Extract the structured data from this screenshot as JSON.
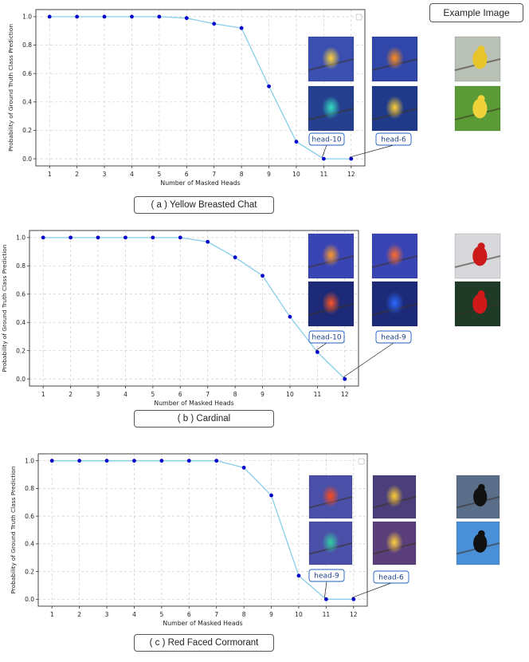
{
  "header": {
    "example_label": "Example Image"
  },
  "colors": {
    "line": "#87ceeb",
    "marker": "#0000cc",
    "grid": "#cccccc",
    "callout": "#1f5fbf"
  },
  "chart_data": [
    {
      "type": "line",
      "caption": "( a ) Yellow Breasted Chat",
      "xlabel": "Number of Masked Heads",
      "ylabel": "Probability of Ground Truth Class Prediction",
      "x": [
        1,
        2,
        3,
        4,
        5,
        6,
        7,
        8,
        9,
        10,
        11,
        12
      ],
      "y": [
        1.0,
        1.0,
        1.0,
        1.0,
        1.0,
        0.99,
        0.95,
        0.92,
        0.51,
        0.12,
        0.0,
        0.0
      ],
      "xlim": [
        0.5,
        12.5
      ],
      "ylim": [
        -0.05,
        1.05
      ],
      "yticks": [
        "0.0",
        "0.2",
        "0.4",
        "0.6",
        "0.8",
        "1.0"
      ],
      "grid": true,
      "legend": "top-right",
      "annotations": [
        {
          "text": "head-10",
          "x": 11,
          "y": 0.0
        },
        {
          "text": "head-6",
          "x": 12,
          "y": 0.0
        }
      ],
      "thumbnails": [
        {
          "kind": "heatmap-bird",
          "bg": "#3a4fb0",
          "accent": "#ffd33a"
        },
        {
          "kind": "heatmap-bird",
          "bg": "#3046a8",
          "accent": "#ff8c1a"
        },
        {
          "kind": "photo-bird",
          "bg": "#b9c0b5",
          "accent": "#e6c42a"
        },
        {
          "kind": "heatmap-bird",
          "bg": "#25408f",
          "accent": "#35e0c0"
        },
        {
          "kind": "heatmap-bird",
          "bg": "#203a8a",
          "accent": "#ffcf30"
        },
        {
          "kind": "photo-bird",
          "bg": "#5a9b35",
          "accent": "#f0d23a"
        }
      ]
    },
    {
      "type": "line",
      "caption": "( b ) Cardinal",
      "xlabel": "Number of Masked Heads",
      "ylabel": "Probability of Ground Truth Class Prediction",
      "x": [
        1,
        2,
        3,
        4,
        5,
        6,
        7,
        8,
        9,
        10,
        11,
        12
      ],
      "y": [
        1.0,
        1.0,
        1.0,
        1.0,
        1.0,
        1.0,
        0.97,
        0.86,
        0.73,
        0.44,
        0.19,
        0.0
      ],
      "xlim": [
        0.5,
        12.5
      ],
      "ylim": [
        -0.05,
        1.05
      ],
      "yticks": [
        "0.0",
        "0.2",
        "0.4",
        "0.6",
        "0.8",
        "1.0"
      ],
      "grid": true,
      "legend": "none",
      "annotations": [
        {
          "text": "head-10",
          "x": 11,
          "y": 0.19
        },
        {
          "text": "head-9",
          "x": 12,
          "y": 0.0
        }
      ],
      "thumbnails": [
        {
          "kind": "heatmap-bird",
          "bg": "#3a45b5",
          "accent": "#ff9a2a"
        },
        {
          "kind": "heatmap-bird",
          "bg": "#3a45b5",
          "accent": "#ff6a2a"
        },
        {
          "kind": "photo-bird",
          "bg": "#d8d8dc",
          "accent": "#cc1a1a"
        },
        {
          "kind": "heatmap-bird",
          "bg": "#1d2a78",
          "accent": "#ff5522"
        },
        {
          "kind": "heatmap-bird",
          "bg": "#1d2a78",
          "accent": "#2a6aff"
        },
        {
          "kind": "photo-bird",
          "bg": "#1f3a26",
          "accent": "#d01a1a"
        }
      ]
    },
    {
      "type": "line",
      "caption": "( c ) Red Faced Cormorant",
      "xlabel": "Number of Masked Heads",
      "ylabel": "Probability of Ground Truth Class Prediction",
      "x": [
        1,
        2,
        3,
        4,
        5,
        6,
        7,
        8,
        9,
        10,
        11,
        12
      ],
      "y": [
        1.0,
        1.0,
        1.0,
        1.0,
        1.0,
        1.0,
        1.0,
        0.95,
        0.75,
        0.17,
        0.0,
        0.0
      ],
      "xlim": [
        0.5,
        12.5
      ],
      "ylim": [
        -0.05,
        1.05
      ],
      "yticks": [
        "0.0",
        "0.2",
        "0.4",
        "0.6",
        "0.8",
        "1.0"
      ],
      "grid": true,
      "legend": "top-right",
      "annotations": [
        {
          "text": "head-9",
          "x": 11,
          "y": 0.0
        },
        {
          "text": "head-6",
          "x": 12,
          "y": 0.0
        }
      ],
      "thumbnails": [
        {
          "kind": "heatmap-bird",
          "bg": "#4a4fa8",
          "accent": "#ff4a1a"
        },
        {
          "kind": "heatmap-bird",
          "bg": "#4a3f7a",
          "accent": "#ffcc33"
        },
        {
          "kind": "photo-bird",
          "bg": "#5a6e8a",
          "accent": "#111111"
        },
        {
          "kind": "heatmap-bird",
          "bg": "#4a4fa8",
          "accent": "#30d0a0"
        },
        {
          "kind": "heatmap-bird",
          "bg": "#5a3f7a",
          "accent": "#ffd040"
        },
        {
          "kind": "photo-bird",
          "bg": "#4a90d8",
          "accent": "#111111"
        }
      ]
    }
  ]
}
